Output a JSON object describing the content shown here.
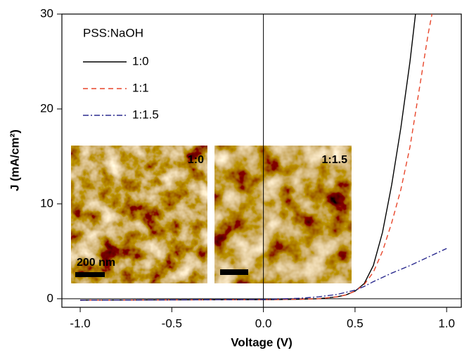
{
  "chart_data": {
    "type": "line",
    "xlabel": "Voltage (V)",
    "ylabel": "J (mA/cm²)",
    "legend_title": "PSS:NaOH",
    "legend": "upper left",
    "xlim": [
      -1.1,
      1.08
    ],
    "ylim": [
      -0.9,
      30
    ],
    "xticks": [
      {
        "value": -1,
        "label": "-1.0"
      },
      -0.5,
      {
        "value": 0,
        "label": "0.0"
      },
      0.5,
      {
        "value": 1,
        "label": "1.0"
      }
    ],
    "yticks": [
      0,
      10,
      20,
      30
    ],
    "series": [
      {
        "name": "1:0",
        "color": "#000000",
        "dash": "solid",
        "x": [
          -1.0,
          -0.5,
          0,
          0.2,
          0.3,
          0.4,
          0.45,
          0.5,
          0.55,
          0.6,
          0.65,
          0.7,
          0.75,
          0.8,
          0.83
        ],
        "values": [
          -0.15,
          -0.12,
          -0.1,
          -0.05,
          0.0,
          0.2,
          0.4,
          0.8,
          1.6,
          3.5,
          7,
          12,
          18,
          25,
          30
        ]
      },
      {
        "name": "1:1",
        "color": "#e8452a",
        "dash": "dashed",
        "x": [
          -1.0,
          -0.5,
          0,
          0.2,
          0.3,
          0.4,
          0.45,
          0.5,
          0.55,
          0.6,
          0.65,
          0.7,
          0.75,
          0.8,
          0.85,
          0.9,
          0.92
        ],
        "values": [
          -0.15,
          -0.12,
          -0.1,
          -0.05,
          0.0,
          0.2,
          0.4,
          0.8,
          1.5,
          2.8,
          5,
          8,
          11.5,
          16,
          22,
          28,
          30
        ]
      },
      {
        "name": "1:1.5",
        "color": "#2b2b8f",
        "dash": "dashdot",
        "x": [
          -1.0,
          -0.5,
          0,
          0.2,
          0.3,
          0.4,
          0.5,
          0.55,
          0.6,
          0.7,
          0.8,
          0.9,
          1.0
        ],
        "values": [
          -0.15,
          -0.12,
          -0.08,
          0.05,
          0.2,
          0.45,
          0.9,
          1.3,
          1.8,
          2.7,
          3.5,
          4.4,
          5.3
        ]
      }
    ],
    "annotations": [
      "1:0",
      "1:1.5",
      "200 nm"
    ]
  }
}
